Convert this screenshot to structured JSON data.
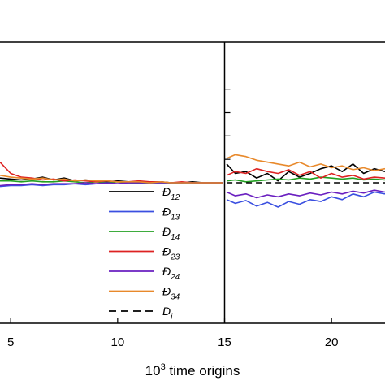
{
  "chart_data": {
    "type": "line",
    "xlabel_base": "10",
    "xlabel_exp": "3",
    "xlabel_rest": " time origins",
    "xlim": [
      4.5,
      22.5
    ],
    "x_ticks": [
      {
        "value": 5,
        "label": "5"
      },
      {
        "value": 10,
        "label": "10"
      },
      {
        "value": 15,
        "label": "15"
      },
      {
        "value": 20,
        "label": "20"
      }
    ],
    "y_ticks_right_panel": [
      0.25,
      0.5,
      0.75,
      1.0
    ],
    "y_tick_labels_visible": false,
    "ylim": [
      -1.5,
      1.5
    ],
    "panel_divider_x": 15,
    "grid": false,
    "legend": {
      "placement": "center",
      "entries": [
        {
          "main": "Đ",
          "sub": "12",
          "color": "#000000",
          "dash": false
        },
        {
          "main": "Đ",
          "sub": "13",
          "color": "#3a4fe0",
          "dash": false
        },
        {
          "main": "Đ",
          "sub": "14",
          "color": "#22a022",
          "dash": false
        },
        {
          "main": "Đ",
          "sub": "23",
          "color": "#dd2222",
          "dash": false
        },
        {
          "main": "Đ",
          "sub": "24",
          "color": "#6a1fc0",
          "dash": false
        },
        {
          "main": "Đ",
          "sub": "34",
          "color": "#e8892b",
          "dash": false
        },
        {
          "main": "D",
          "sub": "i",
          "color": "#000000",
          "dash": true
        }
      ]
    },
    "series": [
      {
        "key": "d12",
        "color": "#000000",
        "x": [
          4.5,
          5.0,
          5.5,
          6.0,
          6.5,
          7.0,
          7.5,
          8.0,
          8.5,
          9.0,
          9.5,
          10.0,
          10.5,
          11.0,
          11.5,
          12.0,
          12.5,
          13.0,
          13.5,
          14.0,
          14.5,
          14.9,
          15.1,
          15.5,
          16.0,
          16.5,
          17.0,
          17.5,
          18.0,
          18.5,
          19.0,
          19.5,
          20.0,
          20.5,
          21.0,
          21.5,
          22.0,
          22.5
        ],
        "y": [
          0.05,
          0.04,
          0.03,
          0.04,
          0.06,
          0.03,
          0.05,
          0.02,
          0.03,
          0.02,
          0.01,
          0.02,
          0.01,
          0.01,
          0.0,
          0.01,
          0.0,
          0.0,
          0.01,
          0.0,
          0.0,
          0.0,
          0.2,
          0.1,
          0.12,
          0.05,
          0.1,
          0.02,
          0.12,
          0.06,
          0.1,
          0.15,
          0.18,
          0.12,
          0.2,
          0.1,
          0.15,
          0.12
        ]
      },
      {
        "key": "d13",
        "color": "#3a4fe0",
        "x": [
          4.5,
          5.0,
          5.5,
          6.0,
          6.5,
          7.0,
          7.5,
          8.0,
          8.5,
          9.0,
          9.5,
          10.0,
          10.5,
          11.0,
          11.5,
          12.0,
          12.5,
          13.0,
          13.5,
          14.0,
          14.5,
          14.9,
          15.1,
          15.5,
          16.0,
          16.5,
          17.0,
          17.5,
          18.0,
          18.5,
          19.0,
          19.5,
          20.0,
          20.5,
          21.0,
          21.5,
          22.0,
          22.5
        ],
        "y": [
          -0.04,
          -0.03,
          -0.03,
          -0.02,
          -0.03,
          -0.02,
          -0.02,
          -0.01,
          -0.02,
          -0.01,
          -0.01,
          -0.01,
          0.0,
          -0.01,
          0.0,
          0.0,
          0.0,
          0.0,
          0.0,
          0.0,
          0.0,
          0.0,
          -0.18,
          -0.22,
          -0.19,
          -0.25,
          -0.21,
          -0.26,
          -0.2,
          -0.23,
          -0.18,
          -0.2,
          -0.15,
          -0.18,
          -0.12,
          -0.15,
          -0.1,
          -0.12
        ]
      },
      {
        "key": "d14",
        "color": "#22a022",
        "x": [
          4.5,
          5.0,
          5.5,
          6.0,
          6.5,
          7.0,
          7.5,
          8.0,
          8.5,
          9.0,
          9.5,
          10.0,
          10.5,
          11.0,
          11.5,
          12.0,
          12.5,
          13.0,
          13.5,
          14.0,
          14.5,
          14.9,
          15.1,
          15.5,
          16.0,
          16.5,
          17.0,
          17.5,
          18.0,
          18.5,
          19.0,
          19.5,
          20.0,
          20.5,
          21.0,
          21.5,
          22.0,
          22.5
        ],
        "y": [
          0.02,
          0.02,
          0.01,
          0.02,
          0.01,
          0.01,
          0.02,
          0.01,
          0.0,
          0.01,
          0.0,
          0.01,
          0.0,
          0.0,
          0.0,
          0.0,
          0.0,
          0.0,
          0.0,
          0.0,
          0.0,
          0.0,
          0.02,
          0.03,
          0.01,
          0.02,
          0.03,
          0.04,
          0.03,
          0.05,
          0.04,
          0.06,
          0.05,
          0.04,
          0.05,
          0.03,
          0.04,
          0.03
        ]
      },
      {
        "key": "d23",
        "color": "#dd2222",
        "x": [
          4.5,
          5.0,
          5.5,
          6.0,
          6.5,
          7.0,
          7.5,
          8.0,
          8.5,
          9.0,
          9.5,
          10.0,
          10.5,
          11.0,
          11.5,
          12.0,
          12.5,
          13.0,
          13.5,
          14.0,
          14.5,
          14.9,
          15.1,
          15.5,
          16.0,
          16.5,
          17.0,
          17.5,
          18.0,
          18.5,
          19.0,
          19.5,
          20.0,
          20.5,
          21.0,
          21.5,
          22.0,
          22.5
        ],
        "y": [
          0.22,
          0.1,
          0.06,
          0.05,
          0.03,
          0.04,
          0.02,
          0.03,
          0.02,
          0.01,
          0.02,
          0.01,
          0.01,
          0.02,
          0.01,
          0.01,
          0.0,
          0.01,
          0.0,
          0.0,
          0.0,
          0.0,
          0.08,
          0.12,
          0.1,
          0.15,
          0.12,
          0.1,
          0.14,
          0.08,
          0.12,
          0.05,
          0.1,
          0.06,
          0.08,
          0.04,
          0.06,
          0.05
        ]
      },
      {
        "key": "d24",
        "color": "#6a1fc0",
        "x": [
          4.5,
          5.0,
          5.5,
          6.0,
          6.5,
          7.0,
          7.5,
          8.0,
          8.5,
          9.0,
          9.5,
          10.0,
          10.5,
          11.0,
          11.5,
          12.0,
          12.5,
          13.0,
          13.5,
          14.0,
          14.5,
          14.9,
          15.1,
          15.5,
          16.0,
          16.5,
          17.0,
          17.5,
          18.0,
          18.5,
          19.0,
          19.5,
          20.0,
          20.5,
          21.0,
          21.5,
          22.0,
          22.5
        ],
        "y": [
          -0.03,
          -0.02,
          -0.02,
          -0.01,
          -0.02,
          -0.01,
          -0.01,
          -0.01,
          0.0,
          -0.01,
          0.0,
          -0.01,
          0.0,
          0.0,
          0.0,
          0.0,
          0.0,
          0.0,
          0.0,
          0.0,
          0.0,
          0.0,
          -0.1,
          -0.14,
          -0.12,
          -0.16,
          -0.13,
          -0.15,
          -0.12,
          -0.14,
          -0.11,
          -0.13,
          -0.1,
          -0.12,
          -0.09,
          -0.11,
          -0.08,
          -0.1
        ]
      },
      {
        "key": "d34",
        "color": "#e8892b",
        "x": [
          4.5,
          5.0,
          5.5,
          6.0,
          6.5,
          7.0,
          7.5,
          8.0,
          8.5,
          9.0,
          9.5,
          10.0,
          10.5,
          11.0,
          11.5,
          12.0,
          12.5,
          13.0,
          13.5,
          14.0,
          14.5,
          14.9,
          15.1,
          15.5,
          16.0,
          16.5,
          17.0,
          17.5,
          18.0,
          18.5,
          19.0,
          19.5,
          20.0,
          20.5,
          21.0,
          21.5,
          22.0,
          22.5
        ],
        "y": [
          0.08,
          0.06,
          0.05,
          0.04,
          0.05,
          0.03,
          0.04,
          0.02,
          0.03,
          0.02,
          0.02,
          0.01,
          0.01,
          0.01,
          0.0,
          0.01,
          0.0,
          0.0,
          0.0,
          0.0,
          0.0,
          0.0,
          0.26,
          0.3,
          0.28,
          0.24,
          0.22,
          0.2,
          0.18,
          0.22,
          0.17,
          0.2,
          0.16,
          0.18,
          0.14,
          0.16,
          0.13,
          0.15
        ]
      },
      {
        "key": "di",
        "color": "#000000",
        "dashed": true,
        "x": [
          15.1,
          22.5
        ],
        "y": [
          0.0,
          0.0
        ]
      }
    ]
  }
}
